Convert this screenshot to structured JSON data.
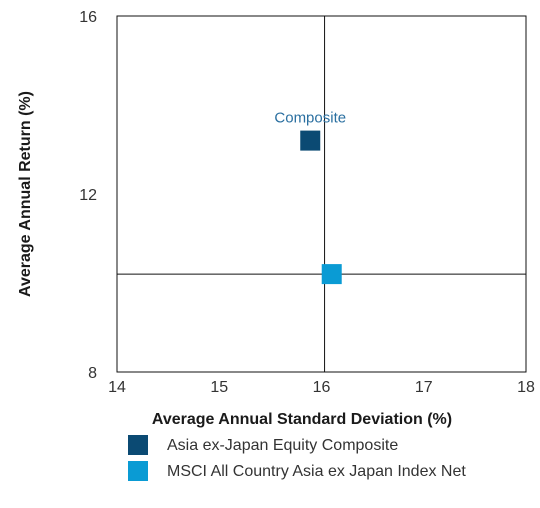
{
  "chart_data": {
    "type": "scatter",
    "title": "",
    "xlabel": "Average Annual Standard Deviation (%)",
    "ylabel": "Average Annual Return (%)",
    "xlim": [
      14,
      18
    ],
    "ylim": [
      8,
      16
    ],
    "xticks": [
      "14",
      "15",
      "16",
      "17",
      "18"
    ],
    "yticks": [
      "8",
      "12",
      "16"
    ],
    "grid": false,
    "reference_lines": {
      "x": 16.03,
      "y": 10.2
    },
    "series": [
      {
        "name": "Asia ex-Japan Equity Composite",
        "color": "#0b4a73",
        "x": 15.89,
        "y": 13.2,
        "label": "Composite",
        "label_color": "#2a6fa0"
      },
      {
        "name": "MSCI All Country Asia ex Japan Index Net",
        "color": "#0a9bd4",
        "x": 16.1,
        "y": 10.2
      }
    ],
    "legend_position": "bottom"
  }
}
